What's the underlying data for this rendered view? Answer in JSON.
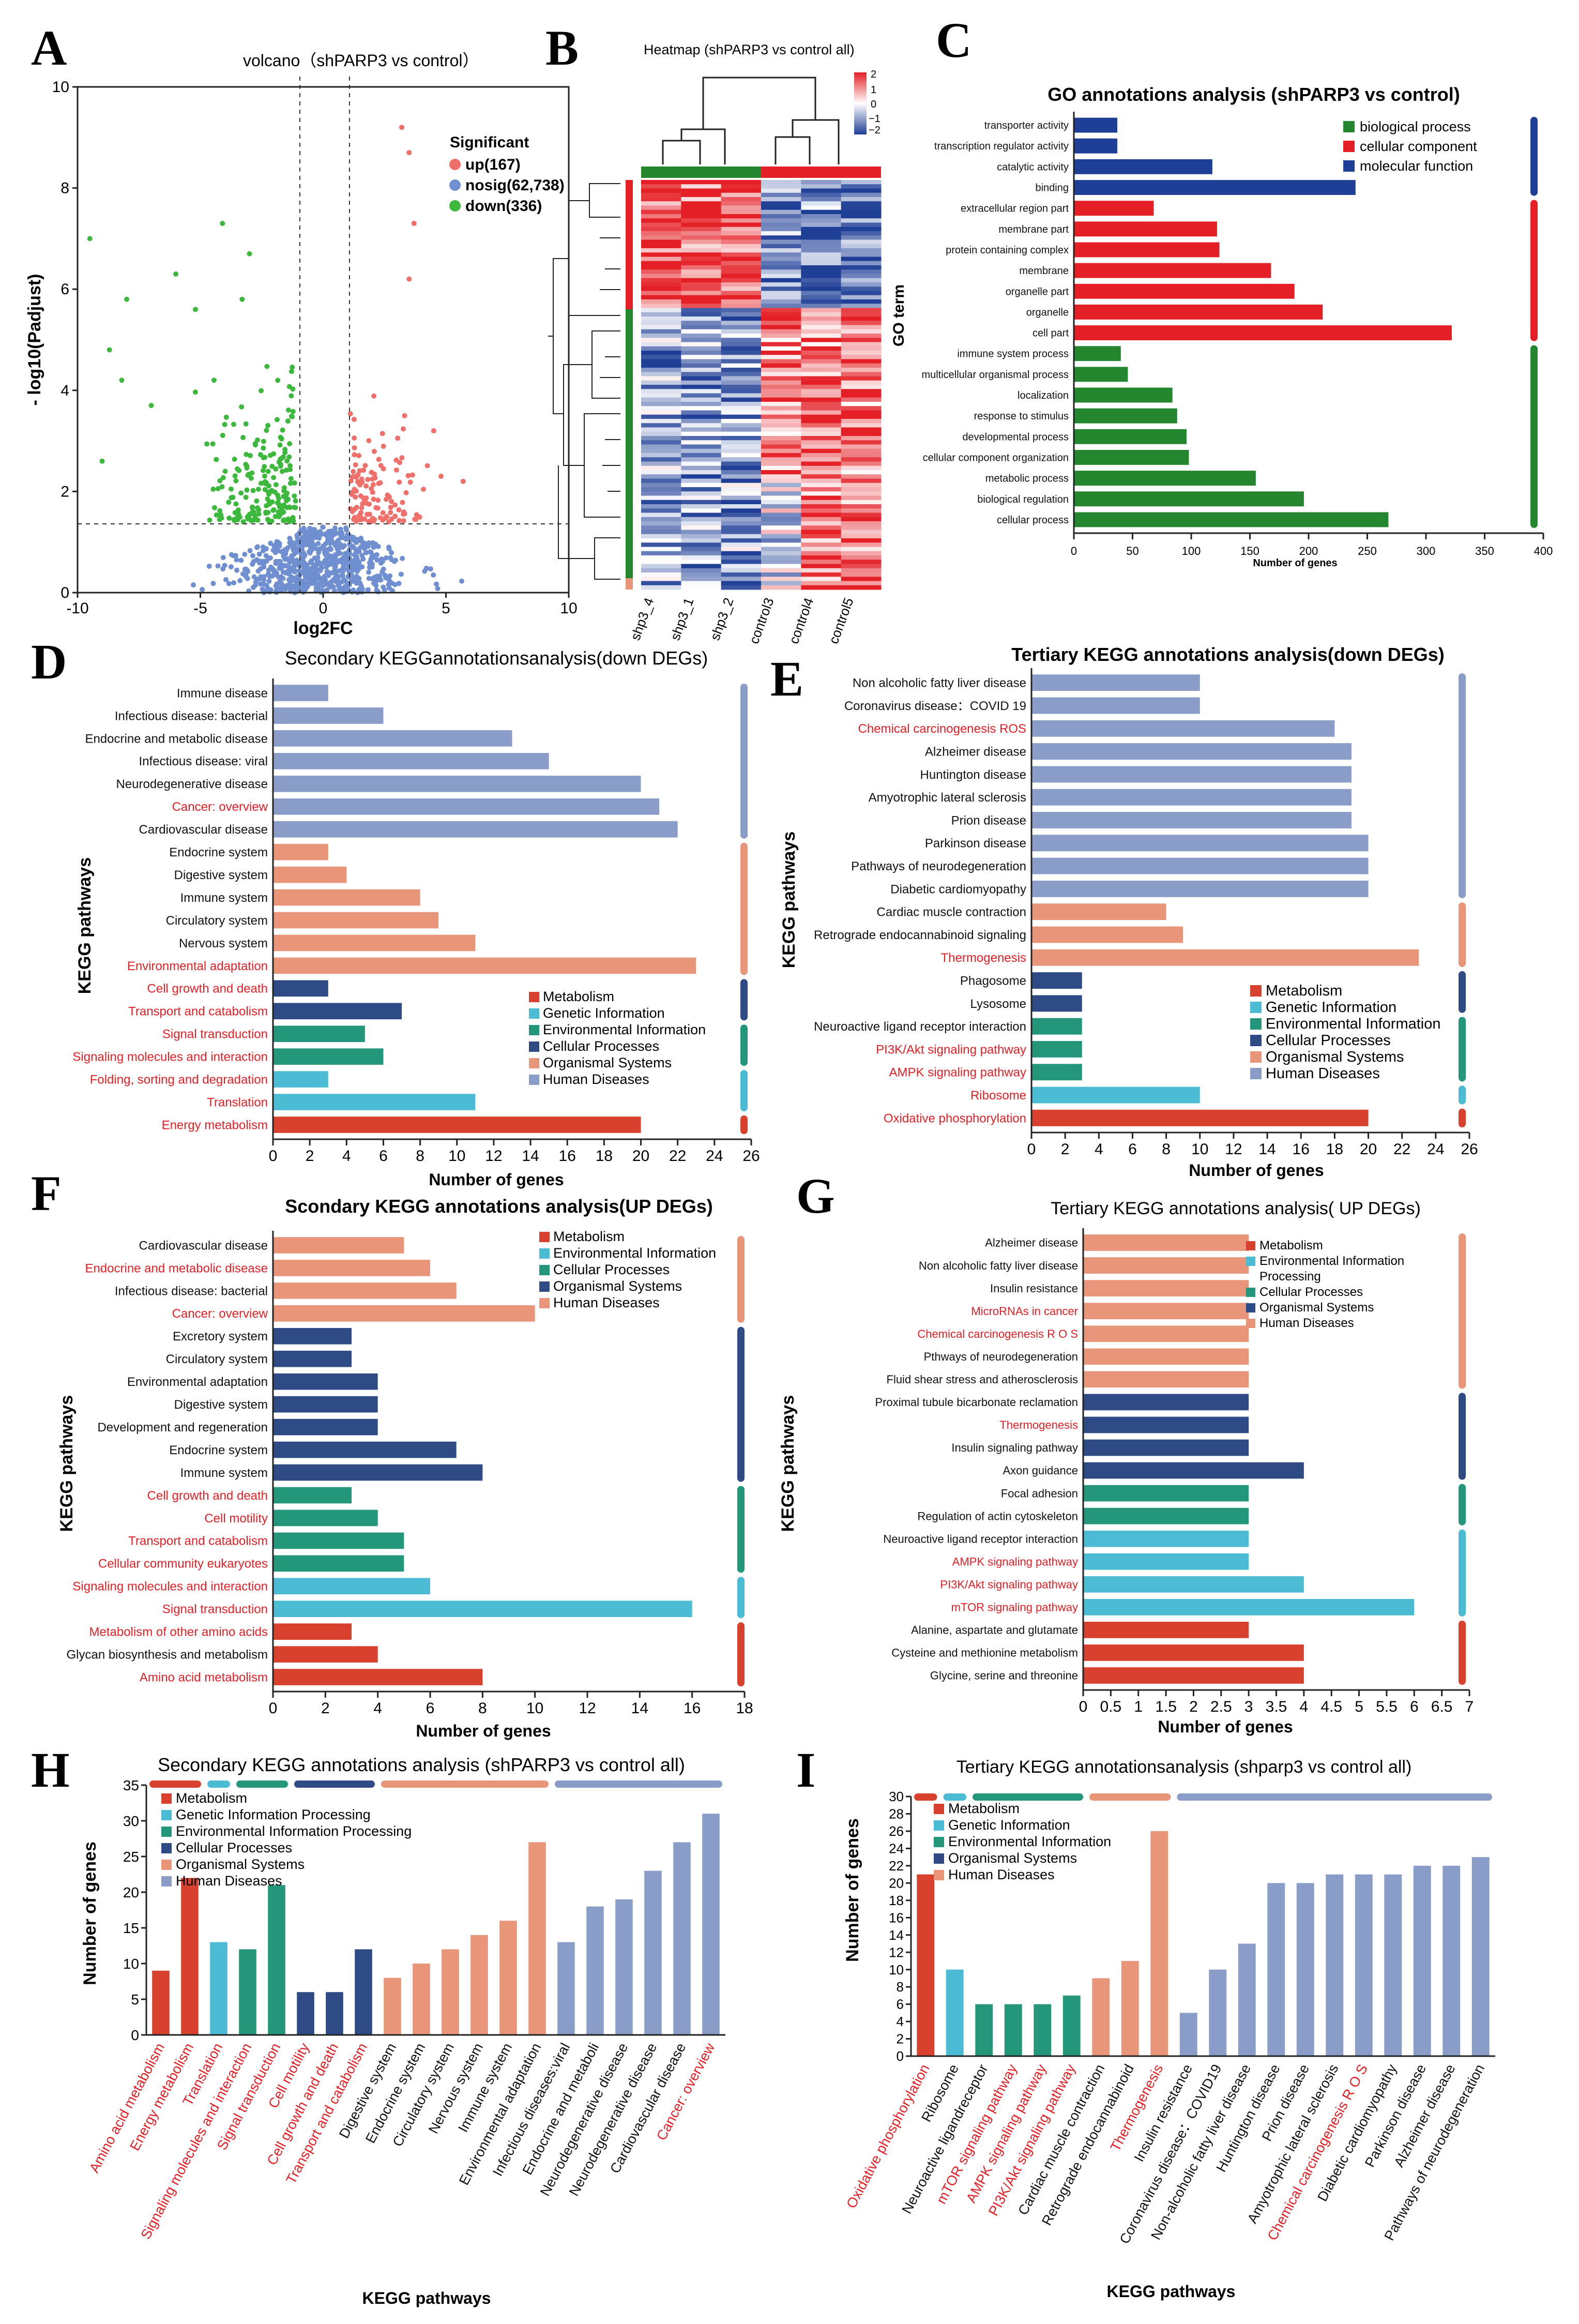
{
  "colors": {
    "metab": "#d7412e",
    "genetic": "#4cbcd4",
    "env": "#24967a",
    "cellular": "#2f4b86",
    "organismal": "#e8957a",
    "human": "#8a9cc8",
    "bp": "#24862e",
    "cc": "#e41f25",
    "mf": "#1f3f96",
    "red": "#e41f25",
    "up": "#ef6f6a",
    "nosig": "#6f8fd0",
    "down": "#3cb83c"
  },
  "legends": {
    "six": [
      "Metabolism",
      "Genetic Information",
      "Environmental Information",
      "Cellular Processes",
      "Organismal Systems",
      "Human Diseases"
    ],
    "five_f": [
      "Metabolism",
      "Environmental Information",
      "Cellular Processes",
      "Organismal Systems",
      "Human Diseases"
    ],
    "five_g": [
      "Metabolism",
      "Environmental Information",
      "Processing",
      "Cellular Processes",
      "Organismal Systems",
      "Human Diseases"
    ],
    "six_h": [
      "Metabolism",
      "Genetic Information Processing",
      "Environmental Information Processing",
      "Cellular Processes",
      "Organismal Systems",
      "Human Diseases"
    ],
    "five_i": [
      "Metabolism",
      "Genetic Information",
      "Environmental Information",
      "Organismal Systems",
      "Human Diseases"
    ],
    "go": [
      "biological process",
      "cellular component",
      "molecular function"
    ]
  },
  "chart_data": [
    {
      "panel": "A",
      "type": "scatter",
      "title": "volcano（shPARP3 vs control）",
      "xlabel": "log2FC",
      "ylabel": "- log10(Padjust)",
      "xlim": [
        -10,
        10
      ],
      "ylim": [
        0,
        10
      ],
      "xticks": [
        "-10",
        "-5",
        "0",
        "5",
        "10"
      ],
      "yticks": [
        "0",
        "2",
        "4",
        "6",
        "8",
        "10"
      ],
      "legend_title": "Significant",
      "legend": [
        "up(167)",
        "nosig(62,738)",
        "down(336)"
      ],
      "series": [
        {
          "name": "up",
          "count": 167
        },
        {
          "name": "nosig",
          "count": 62738
        },
        {
          "name": "down",
          "count": 336
        }
      ]
    },
    {
      "panel": "B",
      "type": "heatmap",
      "title": "Heatmap (shPARP3 vs control all)",
      "columns": [
        "shp3_4",
        "shp3_1",
        "shp3_2",
        "control3",
        "control4",
        "control5"
      ],
      "scale_ticks": [
        "2",
        "1",
        "0",
        "−1",
        "−2"
      ]
    },
    {
      "panel": "C",
      "type": "bar",
      "title": "GO annotations analysis (shPARP3 vs control)",
      "xlabel": "Number of genes",
      "ylabel": "GO term",
      "xlim": [
        0,
        400
      ],
      "xticks": [
        "0",
        "50",
        "100",
        "150",
        "200",
        "250",
        "300",
        "350",
        "400"
      ],
      "categories": [
        "transporter activity",
        "transcription regulator activity",
        "catalytic activity",
        "binding",
        "extracellular region part",
        "membrane part",
        "protein containing complex",
        "membrane",
        "organelle part",
        "organelle",
        "cell part",
        "immune system process",
        "multicellular organismal process",
        "localization",
        "response to stimulus",
        "developmental process",
        "cellular component organization",
        "metabolic process",
        "biological regulation",
        "cellular process"
      ],
      "values": [
        37,
        37,
        118,
        240,
        68,
        122,
        124,
        168,
        188,
        212,
        322,
        40,
        46,
        84,
        88,
        96,
        98,
        155,
        196,
        268
      ],
      "groups": [
        "mf",
        "mf",
        "mf",
        "mf",
        "cc",
        "cc",
        "cc",
        "cc",
        "cc",
        "cc",
        "cc",
        "bp",
        "bp",
        "bp",
        "bp",
        "bp",
        "bp",
        "bp",
        "bp",
        "bp"
      ]
    },
    {
      "panel": "D",
      "type": "bar",
      "title": "Secondary KEGGannotationsanalysis(down DEGs)",
      "xlabel": "Number of genes",
      "ylabel": "KEGG pathways",
      "xlim": [
        0,
        26
      ],
      "xticks": [
        "0",
        "2",
        "4",
        "6",
        "8",
        "10",
        "12",
        "14",
        "16",
        "18",
        "20",
        "22",
        "24",
        "26"
      ],
      "categories": [
        "Immune disease",
        "Infectious disease: bacterial",
        "Endocrine and metabolic disease",
        "Infectious disease: viral",
        "Neurodegenerative disease",
        "Cancer: overview",
        "Cardiovascular disease",
        "Endocrine system",
        "Digestive system",
        "Immune system",
        "Circulatory system",
        "Nervous system",
        "Environmental adaptation",
        "Cell growth and death",
        "Transport and catabolism",
        "Signal transduction",
        "Signaling molecules and interaction",
        "Folding, sorting and degradation",
        "Translation",
        "Energy metabolism"
      ],
      "values": [
        3,
        6,
        13,
        15,
        20,
        21,
        22,
        3,
        4,
        8,
        9,
        11,
        23,
        3,
        7,
        5,
        6,
        3,
        11,
        20
      ],
      "groups": [
        "human",
        "human",
        "human",
        "human",
        "human",
        "human",
        "human",
        "organismal",
        "organismal",
        "organismal",
        "organismal",
        "organismal",
        "organismal",
        "cellular",
        "cellular",
        "env",
        "env",
        "genetic",
        "genetic",
        "metab"
      ],
      "red": [
        0,
        0,
        0,
        0,
        0,
        1,
        0,
        0,
        0,
        0,
        0,
        0,
        1,
        1,
        1,
        1,
        1,
        1,
        1,
        1
      ]
    },
    {
      "panel": "E",
      "type": "bar",
      "title": "Tertiary KEGG annotations analysis(down DEGs)",
      "xlabel": "Number of genes",
      "ylabel": "KEGG pathways",
      "xlim": [
        0,
        26
      ],
      "xticks": [
        "0",
        "2",
        "4",
        "6",
        "8",
        "10",
        "12",
        "14",
        "16",
        "18",
        "20",
        "22",
        "24",
        "26"
      ],
      "categories": [
        "Non alcoholic fatty liver disease",
        "Coronavirus disease：COVID 19",
        "Chemical carcinogenesis ROS",
        "Alzheimer disease",
        "Huntington disease",
        "Amyotrophic lateral sclerosis",
        "Prion disease",
        "Parkinson disease",
        "Pathways of neurodegeneration",
        "Diabetic cardiomyopathy",
        "Cardiac muscle contraction",
        "Retrograde endocannabinoid signaling",
        "Thermogenesis",
        "Phagosome",
        "Lysosome",
        "Neuroactive ligand receptor interaction",
        "PI3K/Akt signaling pathway",
        "AMPK signaling pathway",
        "Ribosome",
        "Oxidative phosphorylation"
      ],
      "values": [
        10,
        10,
        18,
        19,
        19,
        19,
        19,
        20,
        20,
        20,
        8,
        9,
        23,
        3,
        3,
        3,
        3,
        3,
        10,
        20
      ],
      "groups": [
        "human",
        "human",
        "human",
        "human",
        "human",
        "human",
        "human",
        "human",
        "human",
        "human",
        "organismal",
        "organismal",
        "organismal",
        "cellular",
        "cellular",
        "env",
        "env",
        "env",
        "genetic",
        "metab"
      ],
      "red": [
        0,
        0,
        1,
        0,
        0,
        0,
        0,
        0,
        0,
        0,
        0,
        0,
        1,
        0,
        0,
        0,
        1,
        1,
        1,
        1
      ]
    },
    {
      "panel": "F",
      "type": "bar",
      "title": "Scondary KEGG annotations analysis(UP DEGs)",
      "xlabel": "Number of genes",
      "ylabel": "KEGG pathways",
      "xlim": [
        0,
        18
      ],
      "xticks": [
        "0",
        "2",
        "4",
        "6",
        "8",
        "10",
        "12",
        "14",
        "16",
        "18"
      ],
      "categories": [
        "Cardiovascular disease",
        "Endocrine and metabolic disease",
        "Infectious disease: bacterial",
        "Cancer: overview",
        "Excretory system",
        "Circulatory system",
        "Environmental adaptation",
        "Digestive system",
        "Development and regeneration",
        "Endocrine system",
        "Immune system",
        "Cell growth and death",
        "Cell motility",
        "Transport and catabolism",
        "Cellular community eukaryotes",
        "Signaling molecules and interaction",
        "Signal transduction",
        "Metabolism of other amino acids",
        "Glycan biosynthesis and metabolism",
        "Amino acid metabolism"
      ],
      "values": [
        5,
        6,
        7,
        10,
        3,
        3,
        4,
        4,
        4,
        7,
        8,
        3,
        4,
        5,
        5,
        6,
        16,
        3,
        4,
        8
      ],
      "groups": [
        "organismal",
        "organismal",
        "organismal",
        "organismal",
        "cellular",
        "cellular",
        "cellular",
        "cellular",
        "cellular",
        "cellular",
        "cellular",
        "env",
        "env",
        "env",
        "env",
        "genetic",
        "genetic",
        "metab",
        "metab",
        "metab"
      ],
      "red": [
        0,
        1,
        0,
        1,
        0,
        0,
        0,
        0,
        0,
        0,
        0,
        1,
        1,
        1,
        1,
        1,
        1,
        1,
        0,
        1
      ]
    },
    {
      "panel": "G",
      "type": "bar",
      "title": "Tertiary KEGG annotations analysis( UP DEGs)",
      "xlabel": "Number of genes",
      "ylabel": "KEGG pathways",
      "xlim": [
        0,
        7
      ],
      "xticks": [
        "0",
        "0.5",
        "1",
        "1.5",
        "2",
        "2.5",
        "3",
        "3.5",
        "4",
        "4.5",
        "5",
        "5.5",
        "6",
        "6.5",
        "7"
      ],
      "categories": [
        "Alzheimer disease",
        "Non alcoholic fatty liver disease",
        "Insulin resistance",
        "MicroRNAs in cancer",
        "Chemical carcinogenesis R O S",
        "Pthways of neurodegeneration",
        "Fluid shear stress and atherosclerosis",
        "Proximal tubule bicarbonate reclamation",
        "Thermogenesis",
        "Insulin signaling pathway",
        "Axon guidance",
        "Focal adhesion",
        "Regulation of actin cytoskeleton",
        "Neuroactive ligand receptor interaction",
        "AMPK signaling pathway",
        "PI3K/Akt signaling pathway",
        "mTOR signaling pathway",
        "Alanine, aspartate and glutamate",
        "Cysteine and methionine metabolism",
        "Glycine, serine and threonine"
      ],
      "values": [
        3,
        3,
        3,
        3,
        3,
        3,
        3,
        3,
        3,
        3,
        4,
        3,
        3,
        3,
        3,
        4,
        6,
        3,
        4,
        4
      ],
      "groups": [
        "organismal",
        "organismal",
        "organismal",
        "organismal",
        "organismal",
        "organismal",
        "organismal",
        "cellular",
        "cellular",
        "cellular",
        "cellular",
        "env",
        "env",
        "genetic",
        "genetic",
        "genetic",
        "genetic",
        "metab",
        "metab",
        "metab"
      ],
      "red": [
        0,
        0,
        0,
        1,
        1,
        0,
        0,
        0,
        1,
        0,
        0,
        0,
        0,
        0,
        1,
        1,
        1,
        0,
        0,
        0
      ]
    },
    {
      "panel": "H",
      "type": "bar",
      "title": "Secondary KEGG annotations analysis (shPARP3 vs control all)",
      "xlabel": "KEGG pathways",
      "ylabel": "Number of genes",
      "ylim": [
        0,
        35
      ],
      "yticks": [
        "0",
        "5",
        "10",
        "15",
        "20",
        "25",
        "30",
        "35"
      ],
      "categories": [
        "Amino acid metabolism",
        "Energy metabolism",
        "Translation",
        "Signaling molecules and interaction",
        "Signal transduction",
        "Cell motility",
        "Cell growth and death",
        "Transport and catabolism",
        "Digestive system",
        "Endocrine system",
        "Circulatory system",
        "Nervous system",
        "Immune system",
        "Environmental adaptation",
        "Infectious diseases:viral",
        "Endocrine and metaboli",
        "Neurodegenerative disease",
        "Neurodegenerative disease",
        "Cardiovascular disease",
        "Cancer: overview"
      ],
      "values": [
        9,
        22,
        13,
        12,
        21,
        6,
        6,
        12,
        8,
        10,
        12,
        14,
        16,
        27,
        13,
        18,
        19,
        23,
        27,
        31
      ],
      "groups": [
        "metab",
        "metab",
        "genetic",
        "env",
        "env",
        "cellular",
        "cellular",
        "cellular",
        "organismal",
        "organismal",
        "organismal",
        "organismal",
        "organismal",
        "organismal",
        "human",
        "human",
        "human",
        "human",
        "human",
        "human"
      ],
      "red": [
        1,
        1,
        1,
        1,
        1,
        1,
        1,
        1,
        0,
        0,
        0,
        0,
        0,
        0,
        0,
        0,
        0,
        0,
        0,
        1
      ]
    },
    {
      "panel": "I",
      "type": "bar",
      "title": "Tertiary KEGG annotationsanalysis (shparp3 vs control all)",
      "xlabel": "KEGG pathways",
      "ylabel": "Number of genes",
      "ylim": [
        0,
        30
      ],
      "yticks": [
        "0",
        "2",
        "4",
        "6",
        "8",
        "10",
        "12",
        "14",
        "16",
        "18",
        "20",
        "22",
        "24",
        "26",
        "28",
        "30"
      ],
      "categories": [
        "Oxidative phosphorylation",
        "Ribosome",
        "Neuroactive ligandreceptor",
        "mTOR signaling pathway",
        "AMPK signaling pathway",
        "PI3K/Akt signaling pathway",
        "Cardiac muscle contraction",
        "Retrograde endocannabinoid",
        "Thermogenesis",
        "Insulin resistance",
        "Coronavirus disease：COVID19",
        "Non-alcoholic fatty liver disease",
        "Huntington disease",
        "Prion disease",
        "Amyotrophic lateral sclerosis",
        "Chemical carcinogenesis  R O S",
        "Diabetic cardiomyopathy",
        "Parkinson disease",
        "Alzheimer disease",
        "Pathways of neurodegeneration"
      ],
      "values": [
        21,
        10,
        6,
        6,
        6,
        7,
        9,
        11,
        26,
        5,
        10,
        13,
        20,
        20,
        21,
        21,
        21,
        22,
        22,
        23
      ],
      "groups": [
        "metab",
        "genetic",
        "env",
        "env",
        "env",
        "env",
        "organismal",
        "organismal",
        "organismal",
        "human",
        "human",
        "human",
        "human",
        "human",
        "human",
        "human",
        "human",
        "human",
        "human",
        "human"
      ],
      "red": [
        1,
        0,
        0,
        1,
        1,
        1,
        0,
        0,
        1,
        0,
        0,
        0,
        0,
        0,
        0,
        1,
        0,
        0,
        0,
        0
      ]
    }
  ],
  "panel_letters": [
    "A",
    "B",
    "C",
    "D",
    "E",
    "F",
    "G",
    "H",
    "I"
  ]
}
